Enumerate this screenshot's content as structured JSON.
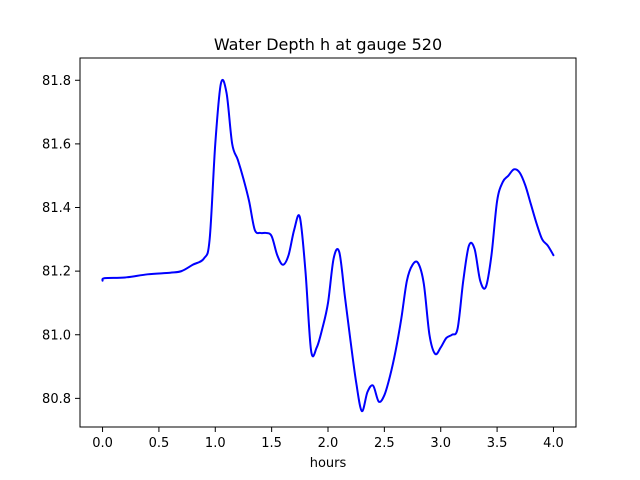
{
  "chart_data": {
    "type": "line",
    "title": "Water Depth h at gauge 520",
    "xlabel": "hours",
    "ylabel": "",
    "xlim": [
      -0.2,
      4.2
    ],
    "ylim": [
      80.71,
      81.87
    ],
    "xticks": [
      0.0,
      0.5,
      1.0,
      1.5,
      2.0,
      2.5,
      3.0,
      3.5,
      4.0
    ],
    "xtick_labels": [
      "0.0",
      "0.5",
      "1.0",
      "1.5",
      "2.0",
      "2.5",
      "3.0",
      "3.5",
      "4.0"
    ],
    "yticks": [
      80.8,
      81.0,
      81.2,
      81.4,
      81.6,
      81.8
    ],
    "ytick_labels": [
      "80.8",
      "81.0",
      "81.2",
      "81.4",
      "81.6",
      "81.8"
    ],
    "grid": false,
    "series": [
      {
        "name": "",
        "color": "#0000ff",
        "x": [
          0.0,
          0.02,
          0.2,
          0.4,
          0.6,
          0.7,
          0.8,
          0.9,
          0.95,
          1.0,
          1.05,
          1.1,
          1.15,
          1.2,
          1.25,
          1.3,
          1.35,
          1.4,
          1.45,
          1.5,
          1.55,
          1.6,
          1.65,
          1.7,
          1.75,
          1.8,
          1.85,
          1.9,
          1.95,
          2.0,
          2.05,
          2.1,
          2.15,
          2.2,
          2.25,
          2.3,
          2.35,
          2.4,
          2.45,
          2.5,
          2.55,
          2.6,
          2.65,
          2.7,
          2.75,
          2.8,
          2.85,
          2.9,
          2.95,
          3.0,
          3.05,
          3.1,
          3.15,
          3.2,
          3.25,
          3.3,
          3.35,
          3.4,
          3.45,
          3.5,
          3.55,
          3.6,
          3.65,
          3.7,
          3.75,
          3.8,
          3.85,
          3.9,
          3.95,
          4.0
        ],
        "values": [
          81.17,
          81.178,
          81.18,
          81.19,
          81.195,
          81.2,
          81.22,
          81.24,
          81.3,
          81.6,
          81.79,
          81.76,
          81.6,
          81.55,
          81.49,
          81.42,
          81.33,
          81.32,
          81.32,
          81.31,
          81.25,
          81.22,
          81.25,
          81.33,
          81.37,
          81.2,
          80.95,
          80.96,
          81.02,
          81.1,
          81.24,
          81.26,
          81.12,
          80.98,
          80.85,
          80.76,
          80.82,
          80.84,
          80.79,
          80.81,
          80.87,
          80.95,
          81.05,
          81.17,
          81.22,
          81.225,
          81.16,
          81.0,
          80.94,
          80.96,
          80.99,
          81.0,
          81.02,
          81.17,
          81.28,
          81.27,
          81.17,
          81.15,
          81.25,
          81.42,
          81.48,
          81.5,
          81.52,
          81.51,
          81.47,
          81.41,
          81.35,
          81.3,
          81.28,
          81.25
        ]
      }
    ]
  }
}
